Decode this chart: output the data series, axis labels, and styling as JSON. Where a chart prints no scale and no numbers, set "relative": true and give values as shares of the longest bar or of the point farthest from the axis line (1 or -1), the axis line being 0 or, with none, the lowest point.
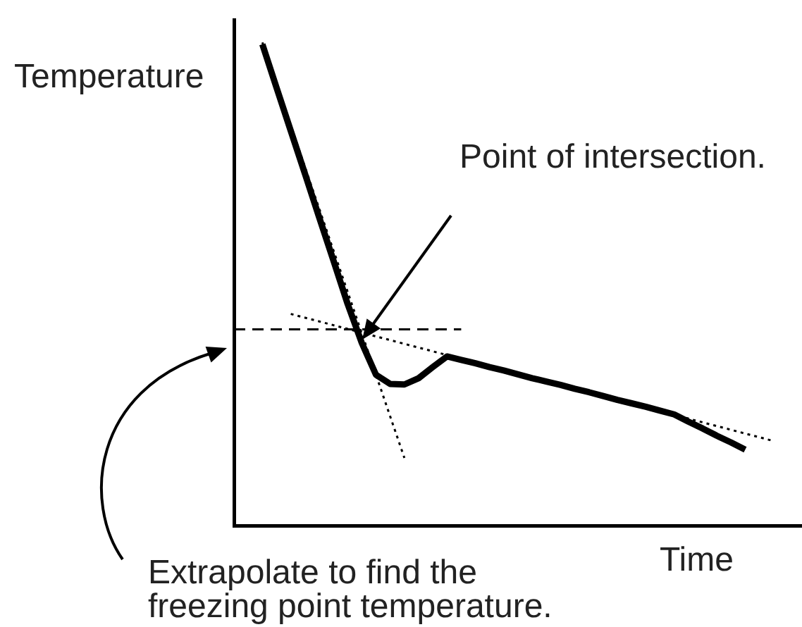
{
  "chart_data": {
    "type": "line",
    "relative": true,
    "xlabel": "Time",
    "ylabel": "Temperature",
    "marker": "none",
    "legend": false,
    "grid": false,
    "annotations": [
      "Point of intersection.",
      "Extrapolate to find the freezing point temperature."
    ],
    "categories": [
      null,
      null,
      null,
      null,
      null,
      null,
      null,
      null,
      null,
      null,
      null,
      null,
      null,
      null,
      null,
      null,
      null,
      null,
      null,
      null,
      null,
      null,
      null,
      null,
      null,
      null,
      null,
      null,
      null,
      null,
      null,
      null,
      null,
      null,
      null,
      null,
      null,
      null,
      null,
      null,
      null
    ],
    "series": [
      {
        "color": "#000000",
        "line_style": "solid",
        "values": [
          null,
          null,
          0.996,
          0.906,
          0.817,
          0.728,
          0.638,
          0.549,
          0.459,
          0.378,
          0.312,
          0.293,
          0.292,
          0.305,
          0.328,
          0.35,
          0.343,
          0.336,
          0.328,
          0.321,
          0.313,
          0.305,
          0.298,
          0.291,
          0.283,
          0.276,
          0.268,
          0.26,
          0.253,
          0.246,
          0.238,
          0.23,
          0.215,
          0.201,
          0.186,
          0.172,
          0.157,
          null,
          null,
          null,
          null
        ]
      },
      {
        "color": "#000000",
        "line_style": "dotted",
        "values": [
          null,
          null,
          1.0,
          null,
          null,
          null,
          null,
          null,
          null,
          null,
          null,
          null,
          0.14,
          null,
          null,
          null,
          null,
          null,
          null,
          null,
          null,
          null,
          null,
          null,
          null,
          null,
          null,
          null,
          null,
          null,
          null,
          null,
          null,
          null,
          null,
          null,
          null,
          null,
          null,
          null,
          null
        ]
      },
      {
        "color": "#000000",
        "line_style": "dotted",
        "values": [
          null,
          null,
          null,
          null,
          0.438,
          null,
          null,
          null,
          null,
          null,
          null,
          null,
          null,
          null,
          null,
          null,
          null,
          null,
          null,
          null,
          null,
          null,
          null,
          null,
          null,
          null,
          null,
          null,
          null,
          null,
          null,
          null,
          null,
          null,
          null,
          null,
          null,
          null,
          0.175,
          null,
          null
        ]
      },
      {
        "color": "#000000",
        "line_style": "dashed",
        "values": [
          0.406,
          null,
          null,
          null,
          null,
          null,
          null,
          null,
          null,
          null,
          null,
          null,
          null,
          null,
          null,
          null,
          0.406,
          null,
          null,
          null,
          null,
          null,
          null,
          null,
          null,
          null,
          null,
          null,
          null,
          null,
          null,
          null,
          null,
          null,
          null,
          null,
          null,
          null,
          null,
          null,
          null
        ]
      }
    ]
  }
}
